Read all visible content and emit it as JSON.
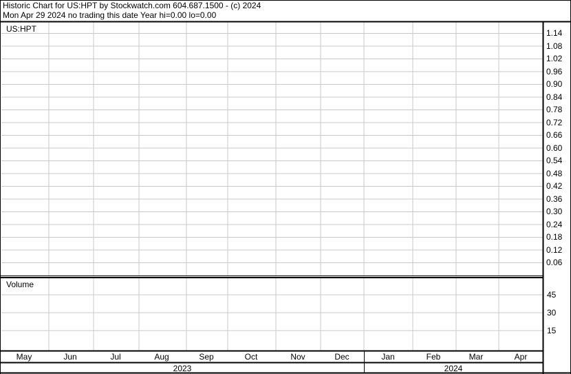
{
  "header": {
    "title": "Historic Chart for US:HPT by Stockwatch.com 604.687.1500 - (c) 2024",
    "status": "Mon Apr 29 2024   no trading this date  Year hi=0.00  lo=0.00"
  },
  "chart_data": [
    {
      "type": "line",
      "title": "US:HPT",
      "series": [],
      "y_ticks": [
        "1.14",
        "1.08",
        "1.02",
        "0.96",
        "0.90",
        "0.84",
        "0.78",
        "0.72",
        "0.66",
        "0.60",
        "0.54",
        "0.48",
        "0.42",
        "0.36",
        "0.30",
        "0.24",
        "0.18",
        "0.12",
        "0.06"
      ],
      "x_ticks": [
        "May",
        "Jun",
        "Jul",
        "Aug",
        "Sep",
        "Oct",
        "Nov",
        "Dec",
        "Jan",
        "Feb",
        "Mar",
        "Apr"
      ],
      "years": [
        "2023",
        "2024"
      ],
      "grid": true,
      "y_axis_side": "right"
    },
    {
      "type": "bar",
      "title": "Volume",
      "series": [],
      "y_ticks": [
        "45",
        "30",
        "15"
      ],
      "grid": true,
      "y_axis_side": "right"
    }
  ],
  "colors": {
    "grid": "#c8c8c8",
    "frame": "#000000",
    "background": "#ffffff"
  }
}
